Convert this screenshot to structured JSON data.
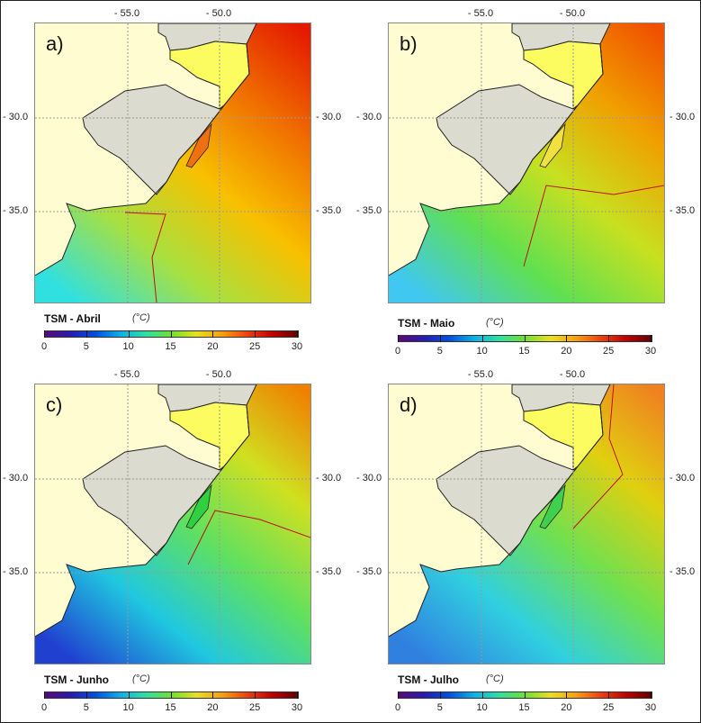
{
  "lon_labels": [
    "- 55.0",
    "- 50.0"
  ],
  "lat_labels": [
    "- 30.0",
    "- 35.0"
  ],
  "colorbar_ticks": [
    "0",
    "5",
    "10",
    "15",
    "20",
    "25",
    "30"
  ],
  "panels": [
    {
      "label": "a)",
      "title": "TSM - Abril",
      "unit": "(°C)",
      "ocean_colors": [
        "#30e0e0",
        "#a8e040",
        "#f8c000",
        "#f07000",
        "#e41a00"
      ],
      "lagoon_color": "#f07010"
    },
    {
      "label": "b)",
      "title": "TSM - Maio",
      "unit": "(°C)",
      "ocean_colors": [
        "#40c8f0",
        "#60e050",
        "#c8e020",
        "#f0a000",
        "#f05000"
      ],
      "lagoon_color": "#f0e040"
    },
    {
      "label": "c)",
      "title": "TSM - Junho",
      "unit": "(°C)",
      "ocean_colors": [
        "#2040d0",
        "#20c8e0",
        "#60e060",
        "#d0e020",
        "#f08000"
      ],
      "lagoon_color": "#30d040"
    },
    {
      "label": "d)",
      "title": "TSM - Julho",
      "unit": "(°C)",
      "ocean_colors": [
        "#3080e0",
        "#30d0e0",
        "#70e050",
        "#e0d010",
        "#f08020"
      ],
      "lagoon_color": "#40d050"
    }
  ]
}
